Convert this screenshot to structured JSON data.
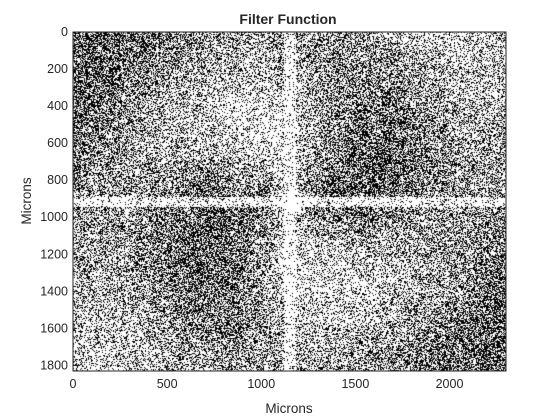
{
  "chart_data": {
    "type": "heatmap",
    "title": "Filter Function",
    "xlabel": "Microns",
    "ylabel": "Microns",
    "xlim": [
      0,
      2300
    ],
    "ylim": [
      0,
      1830
    ],
    "y_reversed": true,
    "xticks": [
      0,
      500,
      1000,
      1500,
      2000
    ],
    "yticks": [
      0,
      200,
      400,
      600,
      800,
      1000,
      1200,
      1400,
      1600,
      1800
    ],
    "xtick_labels": [
      "0",
      "500",
      "1000",
      "1500",
      "2000"
    ],
    "ytick_labels": [
      "0",
      "200",
      "400",
      "600",
      "800",
      "1000",
      "1200",
      "1400",
      "1600",
      "1800"
    ],
    "colormap": [
      "#ffffff",
      "#000000"
    ],
    "center": [
      1150,
      915
    ],
    "grid": false,
    "box": true
  }
}
